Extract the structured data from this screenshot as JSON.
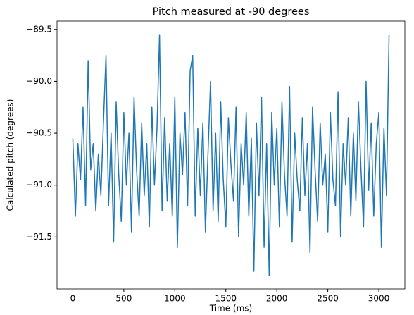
{
  "chart_data": {
    "type": "line",
    "title": "Pitch measured at -90 degrees",
    "x_label": "Time (ms)",
    "y_label": "Calculated pitch (degrees)",
    "color": "#1f77b4",
    "x": [
      0,
      25,
      50,
      75,
      100,
      125,
      150,
      175,
      200,
      225,
      250,
      275,
      300,
      325,
      350,
      375,
      400,
      425,
      450,
      475,
      500,
      525,
      550,
      575,
      600,
      625,
      650,
      675,
      700,
      725,
      750,
      775,
      800,
      825,
      850,
      875,
      900,
      925,
      950,
      975,
      1000,
      1025,
      1050,
      1075,
      1100,
      1125,
      1150,
      1175,
      1200,
      1225,
      1250,
      1275,
      1300,
      1325,
      1350,
      1375,
      1400,
      1425,
      1450,
      1475,
      1500,
      1525,
      1550,
      1575,
      1600,
      1625,
      1650,
      1675,
      1700,
      1725,
      1750,
      1775,
      1800,
      1825,
      1850,
      1875,
      1900,
      1925,
      1950,
      1975,
      2000,
      2025,
      2050,
      2075,
      2100,
      2125,
      2150,
      2175,
      2200,
      2225,
      2250,
      2275,
      2300,
      2325,
      2350,
      2375,
      2400,
      2425,
      2450,
      2475,
      2500,
      2525,
      2550,
      2575,
      2600,
      2625,
      2650,
      2675,
      2700,
      2725,
      2750,
      2775,
      2800,
      2825,
      2850,
      2875,
      2900,
      2925,
      2950,
      2975,
      3000,
      3025,
      3050,
      3075,
      3100
    ],
    "values": [
      -90.55,
      -91.3,
      -90.6,
      -90.95,
      -90.25,
      -91.2,
      -89.8,
      -90.85,
      -90.6,
      -91.25,
      -90.7,
      -91.1,
      -90.4,
      -89.75,
      -91.2,
      -90.5,
      -91.55,
      -90.2,
      -90.9,
      -91.35,
      -90.3,
      -91.0,
      -90.5,
      -91.45,
      -90.15,
      -90.85,
      -91.3,
      -90.4,
      -91.1,
      -90.6,
      -91.4,
      -90.25,
      -91.0,
      -90.45,
      -89.55,
      -91.25,
      -90.35,
      -91.15,
      -90.6,
      -91.3,
      -90.15,
      -91.6,
      -90.5,
      -90.9,
      -90.3,
      -91.2,
      -89.9,
      -89.75,
      -91.3,
      -90.45,
      -91.1,
      -90.4,
      -91.45,
      -90.7,
      -90.0,
      -91.25,
      -90.5,
      -91.35,
      -90.2,
      -90.95,
      -91.4,
      -90.35,
      -90.8,
      -91.15,
      -90.25,
      -91.5,
      -90.6,
      -91.0,
      -90.3,
      -91.3,
      -90.55,
      -91.83,
      -90.4,
      -91.1,
      -90.15,
      -91.6,
      -90.6,
      -91.87,
      -90.3,
      -91.0,
      -90.45,
      -91.4,
      -90.2,
      -90.9,
      -91.3,
      -90.05,
      -91.55,
      -90.5,
      -90.95,
      -91.25,
      -90.35,
      -91.1,
      -90.6,
      -91.65,
      -90.25,
      -90.85,
      -91.35,
      -90.4,
      -91.0,
      -90.7,
      -91.45,
      -90.3,
      -90.95,
      -91.2,
      -90.1,
      -91.5,
      -90.6,
      -91.0,
      -90.35,
      -91.3,
      -90.5,
      -91.15,
      -90.2,
      -90.85,
      -91.4,
      -90.0,
      -91.05,
      -90.4,
      -91.3,
      -90.6,
      -90.3,
      -91.6,
      -90.45,
      -91.1,
      -89.55
    ],
    "xlim": [
      -155,
      3255
    ],
    "ylim": [
      -92.0,
      -89.42
    ],
    "xticks": [
      0,
      500,
      1000,
      1500,
      2000,
      2500,
      3000
    ],
    "yticks": [
      {
        "value": -89.5,
        "label": "−89.5"
      },
      {
        "value": -90.0,
        "label": "−90.0"
      },
      {
        "value": -90.5,
        "label": "−90.5"
      },
      {
        "value": -91.0,
        "label": "−91.0"
      },
      {
        "value": -91.5,
        "label": "−91.5"
      }
    ]
  }
}
